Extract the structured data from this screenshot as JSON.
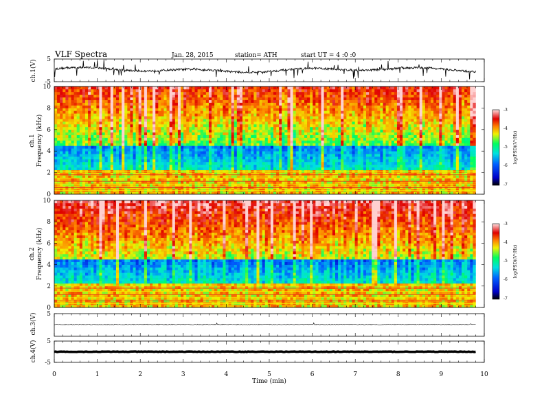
{
  "header": {
    "title": "VLF  Spectra",
    "date": "Jan. 28, 2015",
    "station": "station= ATH",
    "start": "start  UT  =   4  :0  :0"
  },
  "chart_data": [
    {
      "type": "line",
      "name": "ch1",
      "ylabel": "ch.1(V)",
      "ylim": [
        -5,
        5
      ],
      "yticks": [
        "5",
        "-5"
      ],
      "baseline": 0.2
    },
    {
      "type": "heatmap",
      "name": "ch1-spectrogram",
      "ylabel_top": "ch.1",
      "ylabel": "Frequency  (kHz)",
      "ylim": [
        0,
        10
      ],
      "yticks": [
        "0",
        "2",
        "4",
        "6",
        "8",
        "10"
      ],
      "colorbar": {
        "label": "log(PSD)(V²/Hz)",
        "range": [
          -7,
          -3
        ],
        "ticks": [
          "-3",
          "-4",
          "-5",
          "-6",
          "-7"
        ]
      }
    },
    {
      "type": "heatmap",
      "name": "ch2-spectrogram",
      "ylabel_top": "ch.2",
      "ylabel": "Frequency  (kHz)",
      "ylim": [
        0,
        10
      ],
      "yticks": [
        "0",
        "2",
        "4",
        "6",
        "8",
        "10"
      ],
      "colorbar": {
        "label": "log(PSD)(V²/Hz)",
        "range": [
          -7,
          -3
        ],
        "ticks": [
          "-3",
          "-4",
          "-5",
          "-6",
          "-7"
        ]
      }
    },
    {
      "type": "line",
      "name": "ch3",
      "ylabel": "ch.3(V)",
      "ylim": [
        -5,
        5
      ],
      "yticks": [
        "5"
      ],
      "baseline": 0.2
    },
    {
      "type": "line",
      "name": "ch4",
      "ylabel": "ch.4(V)",
      "ylim": [
        -5,
        5
      ],
      "yticks": [
        "5",
        "-5"
      ],
      "baseline": 0.0
    }
  ],
  "xaxis": {
    "label": "Time  (min)",
    "range": [
      0,
      10
    ],
    "ticks": [
      "0",
      "1",
      "2",
      "3",
      "4",
      "5",
      "6",
      "7",
      "8",
      "9",
      "10"
    ],
    "data_end": 9.8
  },
  "colors": {
    "colormap": [
      "#000000",
      "#0000c8",
      "#0060ff",
      "#00e0e0",
      "#00ff60",
      "#f0f000",
      "#ff8000",
      "#e00000",
      "#ffd0d0"
    ]
  }
}
